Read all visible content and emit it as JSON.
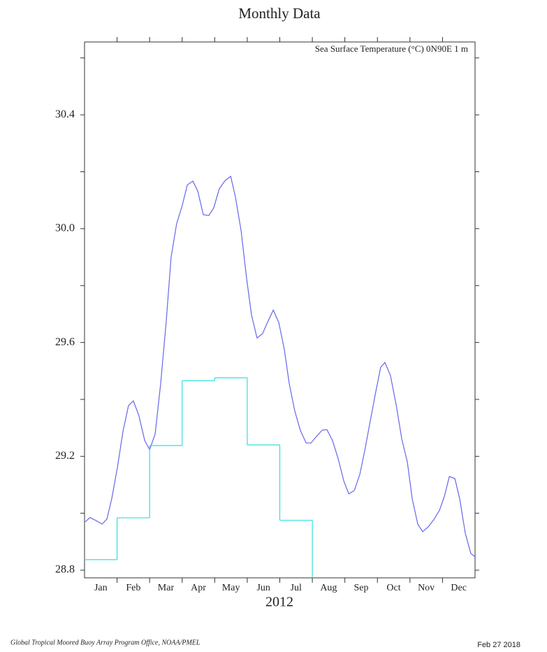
{
  "chart_data": {
    "type": "line",
    "title": "Monthly Data",
    "subtitle": "Sea Surface Temperature (°C) 0N90E  1 m",
    "xlabel": "2012",
    "footer": "Global Tropical Moored Buoy Array Program Office, NOAA/PMEL",
    "date": "Feb 27 2018",
    "categories": [
      "Jan",
      "Feb",
      "Mar",
      "Apr",
      "May",
      "Jun",
      "Jul",
      "Aug",
      "Sep",
      "Oct",
      "Nov",
      "Dec"
    ],
    "xlim": [
      0,
      12
    ],
    "ylim": [
      28.773,
      30.656
    ],
    "yticks": [
      28.8,
      29.2,
      29.6,
      {
        "value": 30,
        "label": "30.0"
      },
      30.4
    ],
    "yminorticks": [
      29.0,
      29.4,
      29.8,
      30.2,
      30.6
    ],
    "series": [
      {
        "color": "#6666ee",
        "x": [
          0.02,
          0.17,
          0.34,
          0.54,
          0.69,
          0.84,
          1.01,
          1.18,
          1.35,
          1.5,
          1.67,
          1.85,
          2.0,
          2.17,
          2.34,
          2.51,
          2.66,
          2.83,
          3.0,
          3.16,
          3.33,
          3.48,
          3.65,
          3.82,
          3.97,
          4.14,
          4.32,
          4.49,
          4.64,
          4.81,
          4.98,
          5.13,
          5.3,
          5.47,
          5.62,
          5.8,
          5.97,
          6.14,
          6.29,
          6.46,
          6.63,
          6.81,
          6.96,
          7.13,
          7.3,
          7.45,
          7.62,
          7.79,
          7.97,
          8.12,
          8.29,
          8.46,
          8.61,
          8.78,
          8.95,
          9.1,
          9.23,
          9.4,
          9.58,
          9.75,
          9.92,
          10.07,
          10.24,
          10.39,
          10.56,
          10.73,
          10.91,
          11.06,
          11.21,
          11.38,
          11.53,
          11.7,
          11.87,
          12.0
        ],
        "values": [
          28.97,
          28.985,
          28.975,
          28.962,
          28.98,
          29.053,
          29.16,
          29.287,
          29.378,
          29.395,
          29.343,
          29.255,
          29.223,
          29.279,
          29.456,
          29.673,
          29.899,
          30.017,
          30.081,
          30.154,
          30.167,
          30.132,
          30.049,
          30.046,
          30.073,
          30.14,
          30.169,
          30.184,
          30.11,
          29.993,
          29.825,
          29.697,
          29.616,
          29.631,
          29.67,
          29.714,
          29.67,
          29.575,
          29.456,
          29.36,
          29.292,
          29.247,
          29.247,
          29.27,
          29.292,
          29.294,
          29.255,
          29.193,
          29.112,
          29.068,
          29.08,
          29.137,
          29.22,
          29.324,
          29.427,
          29.513,
          29.53,
          29.484,
          29.378,
          29.26,
          29.18,
          29.05,
          28.962,
          28.935,
          28.952,
          28.977,
          29.011,
          29.06,
          29.129,
          29.122,
          29.05,
          28.93,
          28.859,
          28.847
        ]
      },
      {
        "color": "#33dddd",
        "step": true,
        "values": [
          28.837,
          28.984,
          29.238,
          29.466,
          29.476,
          29.24,
          28.975,
          28.7,
          28.7,
          28.7,
          28.7,
          28.7
        ]
      }
    ]
  }
}
